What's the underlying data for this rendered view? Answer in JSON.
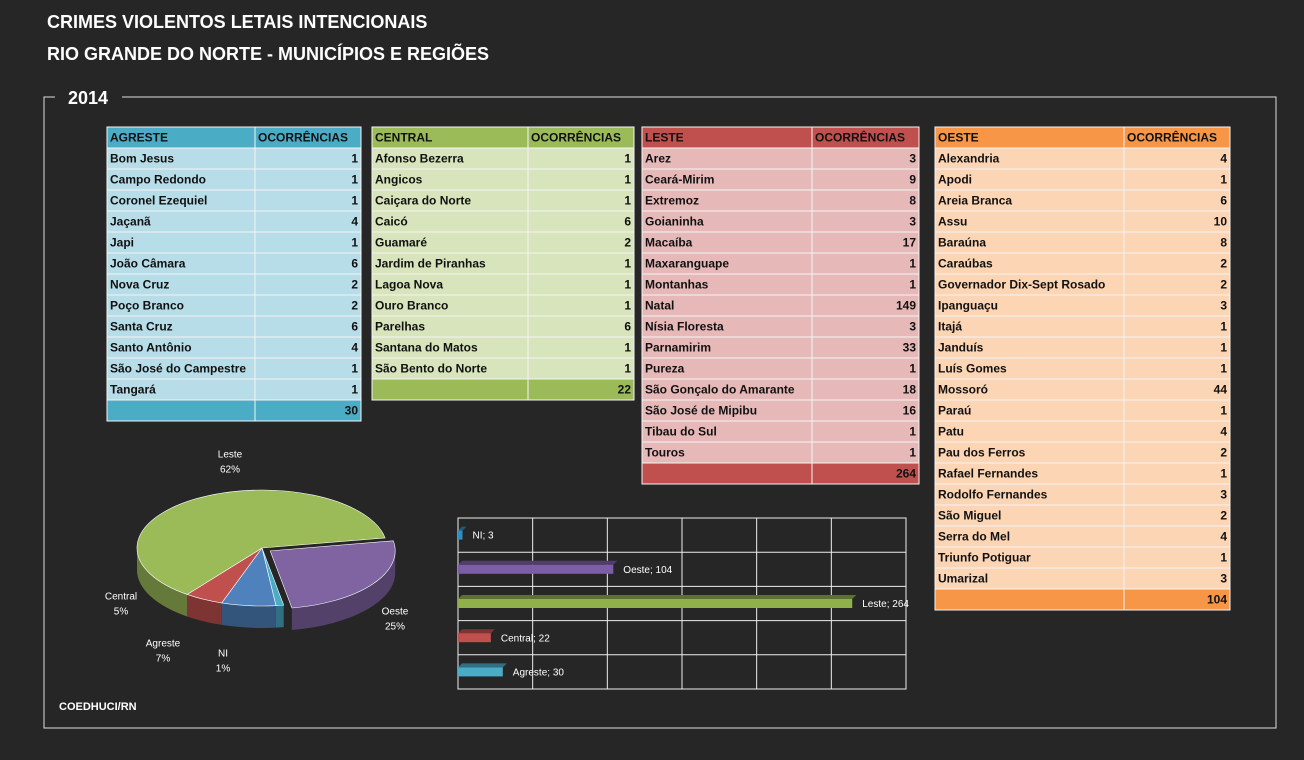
{
  "header": {
    "title_lines": [
      "CRIMES VIOLENTOS LETAIS INTENCIONAIS",
      "RIO GRANDE DO NORTE - MUNICÍPIOS E REGIÕES"
    ],
    "year": "2014"
  },
  "tables": [
    {
      "header": [
        "AGRESTE",
        "OCORRÊNCIAS"
      ],
      "color": "#4bacc6",
      "row_color": "#b7dde8",
      "rows": [
        [
          "Bom Jesus",
          1
        ],
        [
          "Campo Redondo",
          1
        ],
        [
          "Coronel Ezequiel",
          1
        ],
        [
          "Jaçanã",
          4
        ],
        [
          "Japi",
          1
        ],
        [
          "João Câmara",
          6
        ],
        [
          "Nova Cruz",
          2
        ],
        [
          "Poço Branco",
          2
        ],
        [
          "Santa Cruz",
          6
        ],
        [
          "Santo Antônio",
          4
        ],
        [
          "São José do Campestre",
          1
        ],
        [
          "Tangará",
          1
        ]
      ],
      "total": 30
    },
    {
      "header": [
        "CENTRAL",
        "OCORRÊNCIAS"
      ],
      "color": "#9bbb59",
      "row_color": "#d7e4bc",
      "rows": [
        [
          "Afonso Bezerra",
          1
        ],
        [
          "Angicos",
          1
        ],
        [
          "Caiçara do Norte",
          1
        ],
        [
          "Caicó",
          6
        ],
        [
          "Guamaré",
          2
        ],
        [
          "Jardim de Piranhas",
          1
        ],
        [
          "Lagoa Nova",
          1
        ],
        [
          "Ouro Branco",
          1
        ],
        [
          "Parelhas",
          6
        ],
        [
          "Santana do Matos",
          1
        ],
        [
          "São Bento do Norte",
          1
        ]
      ],
      "total": 22
    },
    {
      "header": [
        "LESTE",
        "OCORRÊNCIAS"
      ],
      "color": "#c0504d",
      "row_color": "#e6b9b8",
      "rows": [
        [
          "Arez",
          3
        ],
        [
          "Ceará-Mirim",
          9
        ],
        [
          "Extremoz",
          8
        ],
        [
          "Goianinha",
          3
        ],
        [
          "Macaíba",
          17
        ],
        [
          "Maxaranguape",
          1
        ],
        [
          "Montanhas",
          1
        ],
        [
          "Natal",
          149
        ],
        [
          "Nísia Floresta",
          3
        ],
        [
          "Parnamirim",
          33
        ],
        [
          "Pureza",
          1
        ],
        [
          "São Gonçalo do Amarante",
          18
        ],
        [
          "São José de Mipibu",
          16
        ],
        [
          "Tibau do Sul",
          1
        ],
        [
          "Touros",
          1
        ]
      ],
      "total": 264
    },
    {
      "header": [
        "OESTE",
        "OCORRÊNCIAS"
      ],
      "color": "#f79646",
      "row_color": "#fcd5b4",
      "rows": [
        [
          "Alexandria",
          4
        ],
        [
          "Apodi",
          1
        ],
        [
          "Areia Branca",
          6
        ],
        [
          "Assu",
          10
        ],
        [
          "Baraúna",
          8
        ],
        [
          "Caraúbas",
          2
        ],
        [
          "Governador Dix-Sept Rosado",
          2
        ],
        [
          "Ipanguaçu",
          3
        ],
        [
          "Itajá",
          1
        ],
        [
          "Janduís",
          1
        ],
        [
          "Luís Gomes",
          1
        ],
        [
          "Mossoró",
          44
        ],
        [
          "Paraú",
          1
        ],
        [
          "Patu",
          4
        ],
        [
          "Pau dos Ferros",
          2
        ],
        [
          "Rafael Fernandes",
          1
        ],
        [
          "Rodolfo Fernandes",
          3
        ],
        [
          "São Miguel",
          2
        ],
        [
          "Serra do Mel",
          4
        ],
        [
          "Triunfo Potiguar",
          1
        ],
        [
          "Umarizal",
          3
        ]
      ],
      "total": 104
    }
  ],
  "chart_data": [
    {
      "type": "pie",
      "categories": [
        "Oeste",
        "NI",
        "Agreste",
        "Central",
        "Leste"
      ],
      "values": [
        25,
        1,
        7,
        5,
        62
      ],
      "value_labels": [
        "25%",
        "1%",
        "7%",
        "5%",
        "62%"
      ],
      "colors": [
        "#8064a2",
        "#4bacc6",
        "#4f81bd",
        "#c0504d",
        "#9bbb59"
      ]
    },
    {
      "type": "bar",
      "orientation": "horizontal",
      "categories": [
        "NI",
        "Oeste",
        "Leste",
        "Central",
        "Agreste"
      ],
      "values": [
        3,
        104,
        264,
        22,
        30
      ],
      "value_labels": [
        "NI; 3",
        "Oeste; 104",
        "Leste; 264",
        "Central; 22",
        "Agreste; 30"
      ],
      "colors": [
        "#2e8fc0",
        "#7b5ea7",
        "#8fb04b",
        "#c0504d",
        "#4bacc6"
      ],
      "xlim": [
        0,
        300
      ],
      "xticks": [
        0,
        50,
        100,
        150,
        200,
        250,
        300
      ],
      "grid": true
    }
  ],
  "footer": "COEDHUCI/RN"
}
